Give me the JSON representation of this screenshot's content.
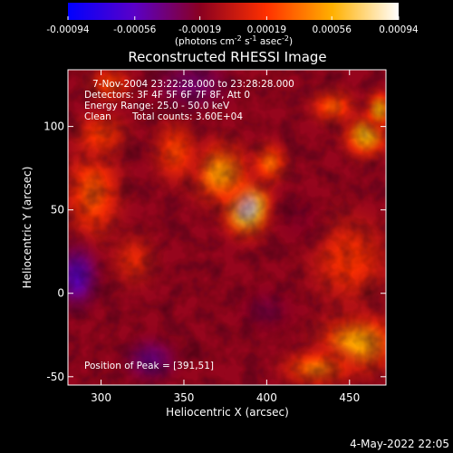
{
  "chart_data": {
    "type": "heatmap",
    "title": "Reconstructed RHESSI Image",
    "xlabel": "Heliocentric X (arcsec)",
    "ylabel": "Heliocentric Y (arcsec)",
    "xlim": [
      280,
      472
    ],
    "ylim": [
      -55,
      134
    ],
    "xticks": [
      300,
      350,
      400,
      450
    ],
    "yticks": [
      -50,
      0,
      50,
      100
    ],
    "colorbar": {
      "range": [
        -0.00094,
        0.00094
      ],
      "tick_values": [
        -0.00094,
        -0.00056,
        -0.00019,
        0.00019,
        0.00056,
        0.00094
      ],
      "tick_labels": [
        "-0.00094",
        "-0.00056",
        "-0.00019",
        "0.00019",
        "0.00056",
        "0.00094"
      ],
      "unit_label_main": "(photons cm",
      "unit_label_rest": " s",
      "unit_label_tail": " asec",
      "unit_label_close": ")",
      "unit_exponents": [
        "-2",
        "-1",
        "-2"
      ]
    },
    "colormap": [
      "#0000ff",
      "#5a00c8",
      "#8a0020",
      "#ff3000",
      "#ffb000",
      "#ffffff"
    ],
    "annotations": [
      "7-Nov-2004 23:22:28.000 to 23:28:28.000",
      "Detectors: 3F 4F 5F 6F 7F 8F, Att 0",
      "Energy Range: 25.0 - 50.0 keV",
      "Clean",
      "Total counts: 3.60E+04"
    ],
    "peak_label": "Position of Peak = [391,51]",
    "peak": [
      391,
      51
    ],
    "sources": [
      {
        "x": 388,
        "y": 52,
        "sigma_x": 11,
        "sigma_y": 13,
        "value": 0.00094
      },
      {
        "x": 372,
        "y": 72,
        "sigma_x": 14,
        "sigma_y": 14,
        "value": 0.0005
      },
      {
        "x": 402,
        "y": 78,
        "sigma_x": 8,
        "sigma_y": 9,
        "value": 0.00035
      },
      {
        "x": 460,
        "y": 95,
        "sigma_x": 10,
        "sigma_y": 10,
        "value": 0.0006
      },
      {
        "x": 468,
        "y": 110,
        "sigma_x": 6,
        "sigma_y": 8,
        "value": 0.00055
      },
      {
        "x": 440,
        "y": 112,
        "sigma_x": 10,
        "sigma_y": 8,
        "value": 0.0003
      },
      {
        "x": 295,
        "y": 60,
        "sigma_x": 13,
        "sigma_y": 22,
        "value": 0.0003
      },
      {
        "x": 300,
        "y": 95,
        "sigma_x": 12,
        "sigma_y": 10,
        "value": 0.00022
      },
      {
        "x": 305,
        "y": 125,
        "sigma_x": 10,
        "sigma_y": 8,
        "value": 0.00025
      },
      {
        "x": 455,
        "y": -30,
        "sigma_x": 18,
        "sigma_y": 14,
        "value": 0.00055
      },
      {
        "x": 430,
        "y": -45,
        "sigma_x": 15,
        "sigma_y": 8,
        "value": 0.0004
      },
      {
        "x": 450,
        "y": 20,
        "sigma_x": 18,
        "sigma_y": 20,
        "value": 0.0002
      },
      {
        "x": 345,
        "y": 85,
        "sigma_x": 10,
        "sigma_y": 14,
        "value": 0.00025
      },
      {
        "x": 320,
        "y": 20,
        "sigma_x": 10,
        "sigma_y": 12,
        "value": 0.00012
      },
      {
        "x": 330,
        "y": -40,
        "sigma_x": 12,
        "sigma_y": 10,
        "value": -0.0004
      },
      {
        "x": 285,
        "y": 10,
        "sigma_x": 10,
        "sigma_y": 14,
        "value": -0.00055
      },
      {
        "x": 355,
        "y": 125,
        "sigma_x": 18,
        "sigma_y": 12,
        "value": -0.00035
      },
      {
        "x": 400,
        "y": -10,
        "sigma_x": 12,
        "sigma_y": 10,
        "value": -0.00025
      },
      {
        "x": 420,
        "y": 45,
        "sigma_x": 10,
        "sigma_y": 12,
        "value": -0.0002
      }
    ],
    "grid": false
  },
  "timestamp": "4-May-2022 22:05"
}
